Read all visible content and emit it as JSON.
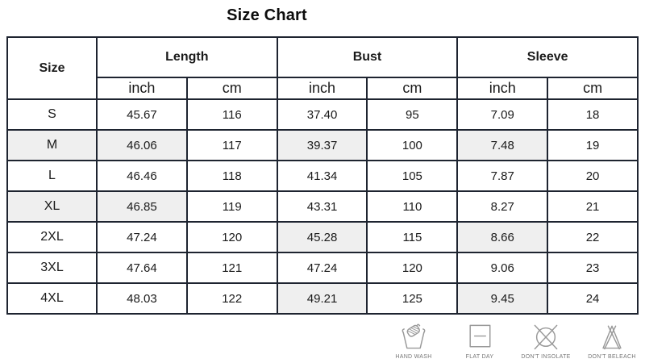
{
  "title": "Size Chart",
  "chart_data": {
    "type": "table",
    "title": "Size Chart",
    "column_groups": [
      "Size",
      "Length",
      "Bust",
      "Sleeve"
    ],
    "unit_row": [
      "inch",
      "cm",
      "inch",
      "cm",
      "inch",
      "cm"
    ],
    "rows": [
      {
        "size": "S",
        "cells": [
          "45.67",
          "116",
          "37.40",
          "95",
          "7.09",
          "18"
        ],
        "shaded": [
          false,
          false,
          false,
          false,
          false,
          false,
          false
        ]
      },
      {
        "size": "M",
        "cells": [
          "46.06",
          "117",
          "39.37",
          "100",
          "7.48",
          "19"
        ],
        "shaded": [
          true,
          true,
          false,
          true,
          false,
          true,
          false
        ]
      },
      {
        "size": "L",
        "cells": [
          "46.46",
          "118",
          "41.34",
          "105",
          "7.87",
          "20"
        ],
        "shaded": [
          false,
          false,
          false,
          false,
          false,
          false,
          false
        ]
      },
      {
        "size": "XL",
        "cells": [
          "46.85",
          "119",
          "43.31",
          "110",
          "8.27",
          "21"
        ],
        "shaded": [
          true,
          true,
          false,
          false,
          false,
          false,
          false
        ]
      },
      {
        "size": "2XL",
        "cells": [
          "47.24",
          "120",
          "45.28",
          "115",
          "8.66",
          "22"
        ],
        "shaded": [
          false,
          false,
          false,
          true,
          false,
          true,
          false
        ]
      },
      {
        "size": "3XL",
        "cells": [
          "47.64",
          "121",
          "47.24",
          "120",
          "9.06",
          "23"
        ],
        "shaded": [
          false,
          false,
          false,
          false,
          false,
          false,
          false
        ]
      },
      {
        "size": "4XL",
        "cells": [
          "48.03",
          "122",
          "49.21",
          "125",
          "9.45",
          "24"
        ],
        "shaded": [
          false,
          false,
          false,
          true,
          false,
          true,
          false
        ]
      }
    ]
  },
  "care_icons": [
    {
      "icon": "hand-wash-icon",
      "label": "HAND WASH"
    },
    {
      "icon": "flat-dry-icon",
      "label": "FLAT DAY"
    },
    {
      "icon": "dont-insolate-icon",
      "label": "DON'T INSOLATE"
    },
    {
      "icon": "dont-bleach-icon",
      "label": "DON'T BELEACH"
    }
  ],
  "colors": {
    "header_bg": "#a9cbea",
    "border": "#1e2430",
    "shaded_cell": "#efefef",
    "icon_stroke": "#999999",
    "icon_label": "#777777"
  }
}
